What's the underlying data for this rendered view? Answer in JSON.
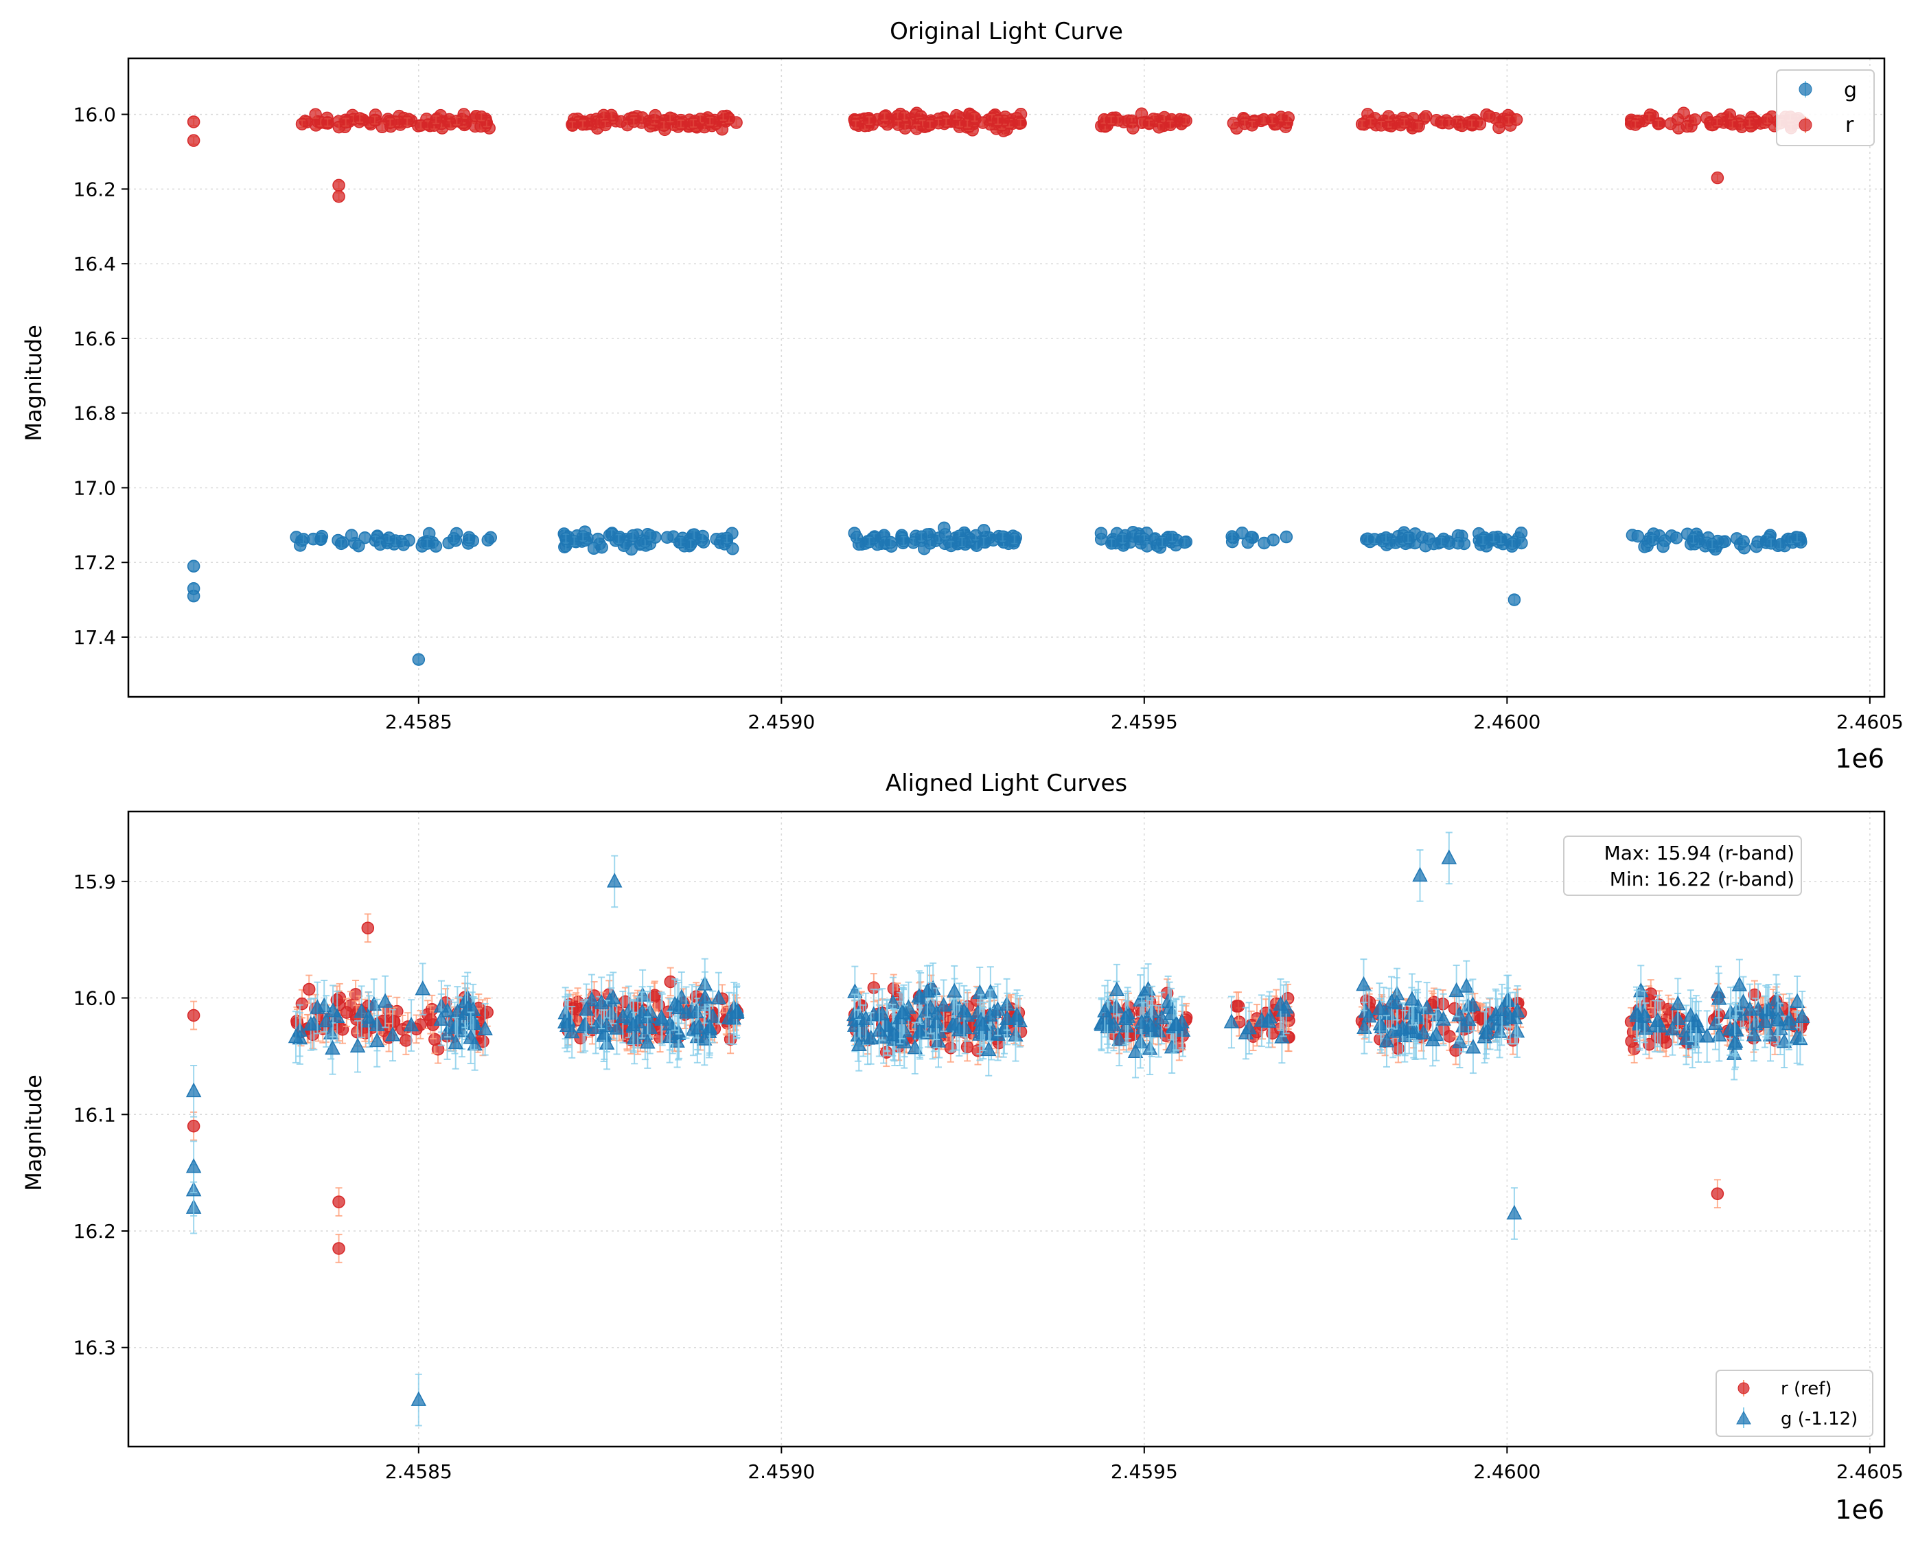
{
  "colors": {
    "g": "#1f77b4",
    "r": "#d62728",
    "g_err": "#87ceeb",
    "r_err": "#ffa07a"
  },
  "chart_data": [
    {
      "type": "scatter",
      "title": "Original Light Curve",
      "xlabel": "",
      "ylabel": "Magnitude",
      "x_offset_label": "1e6",
      "xlim": [
        2.4581,
        2.46052
      ],
      "ylim": [
        17.56,
        15.85
      ],
      "y_inverted": true,
      "xticks": [
        2.4585,
        2.459,
        2.4595,
        2.46,
        2.4605
      ],
      "xtick_labels": [
        "2.4585",
        "2.4590",
        "2.4595",
        "2.4600",
        "2.4605"
      ],
      "yticks": [
        16.0,
        16.2,
        16.4,
        16.6,
        16.8,
        17.0,
        17.2,
        17.4
      ],
      "ytick_labels": [
        "16.0",
        "16.2",
        "16.4",
        "16.6",
        "16.8",
        "17.0",
        "17.2",
        "17.4"
      ],
      "grid": true,
      "legend": {
        "position": "top-right",
        "entries": [
          "g",
          "r"
        ]
      },
      "series": [
        {
          "name": "g",
          "marker": "circle",
          "mag_center": 17.14,
          "mag_spread": 0.035,
          "error": 0.012,
          "extra_points": [
            [
              2.4585,
              17.46
            ],
            [
              2.46001,
              17.3
            ],
            [
              2.45819,
              17.29
            ],
            [
              2.45819,
              17.27
            ],
            [
              2.45819,
              17.21
            ]
          ],
          "segments": [
            [
              2.45833,
              2.4586,
              45
            ],
            [
              2.4587,
              2.45894,
              70
            ],
            [
              2.4591,
              2.45933,
              90
            ],
            [
              2.45944,
              2.45956,
              40
            ],
            [
              2.45962,
              2.4597,
              10
            ],
            [
              2.4598,
              2.46002,
              60
            ],
            [
              2.46017,
              2.46041,
              60
            ]
          ]
        },
        {
          "name": "r",
          "marker": "circle",
          "mag_center": 16.02,
          "mag_spread": 0.03,
          "error": 0.01,
          "extra_points": [
            [
              2.45839,
              16.22
            ],
            [
              2.45839,
              16.19
            ],
            [
              2.46029,
              16.17
            ],
            [
              2.45819,
              16.07
            ],
            [
              2.45819,
              16.02
            ]
          ],
          "segments": [
            [
              2.45833,
              2.4586,
              80
            ],
            [
              2.4587,
              2.45894,
              90
            ],
            [
              2.4591,
              2.45933,
              110
            ],
            [
              2.45944,
              2.45956,
              40
            ],
            [
              2.45962,
              2.4597,
              20
            ],
            [
              2.4598,
              2.46002,
              60
            ],
            [
              2.46017,
              2.46041,
              70
            ]
          ]
        }
      ]
    },
    {
      "type": "scatter",
      "title": "Aligned Light Curves",
      "xlabel": "",
      "ylabel": "Magnitude",
      "x_offset_label": "1e6",
      "xlim": [
        2.4581,
        2.46052
      ],
      "ylim": [
        16.385,
        15.84
      ],
      "y_inverted": true,
      "xticks": [
        2.4585,
        2.459,
        2.4595,
        2.46,
        2.4605
      ],
      "xtick_labels": [
        "2.4585",
        "2.4590",
        "2.4595",
        "2.4600",
        "2.4605"
      ],
      "yticks": [
        15.9,
        16.0,
        16.1,
        16.2,
        16.3
      ],
      "ytick_labels": [
        "15.9",
        "16.0",
        "16.1",
        "16.2",
        "16.3"
      ],
      "grid": true,
      "legend": {
        "position": "bottom-right",
        "entries": [
          "r (ref)",
          "g (-1.12)"
        ]
      },
      "annotation": {
        "line1": "Max: 15.94 (r-band)",
        "line2": "Min: 16.22 (r-band)"
      },
      "series": [
        {
          "name": "r (ref)",
          "marker": "circle",
          "mag_center": 16.02,
          "mag_spread": 0.035,
          "error": 0.012,
          "extra_points": [
            [
              2.45839,
              16.215
            ],
            [
              2.45839,
              16.175
            ],
            [
              2.46029,
              16.168
            ],
            [
              2.45819,
              16.11
            ],
            [
              2.45819,
              16.015
            ],
            [
              2.45843,
              15.94
            ]
          ],
          "segments": [
            [
              2.45833,
              2.4586,
              80
            ],
            [
              2.4587,
              2.45894,
              90
            ],
            [
              2.4591,
              2.45933,
              110
            ],
            [
              2.45944,
              2.45956,
              40
            ],
            [
              2.45962,
              2.4597,
              20
            ],
            [
              2.4598,
              2.46002,
              60
            ],
            [
              2.46017,
              2.46041,
              70
            ]
          ]
        },
        {
          "name": "g (-1.12)",
          "marker": "triangle",
          "mag_center": 16.02,
          "mag_spread": 0.04,
          "error": 0.022,
          "extra_points": [
            [
              2.4585,
              16.345
            ],
            [
              2.46001,
              16.185
            ],
            [
              2.45819,
              16.18
            ],
            [
              2.45819,
              16.165
            ],
            [
              2.45819,
              16.145
            ],
            [
              2.45819,
              16.08
            ],
            [
              2.45877,
              15.9
            ],
            [
              2.45988,
              15.895
            ],
            [
              2.45992,
              15.88
            ]
          ],
          "segments": [
            [
              2.45833,
              2.4586,
              45
            ],
            [
              2.4587,
              2.45894,
              70
            ],
            [
              2.4591,
              2.45933,
              90
            ],
            [
              2.45944,
              2.45956,
              40
            ],
            [
              2.45962,
              2.4597,
              10
            ],
            [
              2.4598,
              2.46002,
              60
            ],
            [
              2.46017,
              2.46041,
              60
            ]
          ]
        }
      ]
    }
  ]
}
